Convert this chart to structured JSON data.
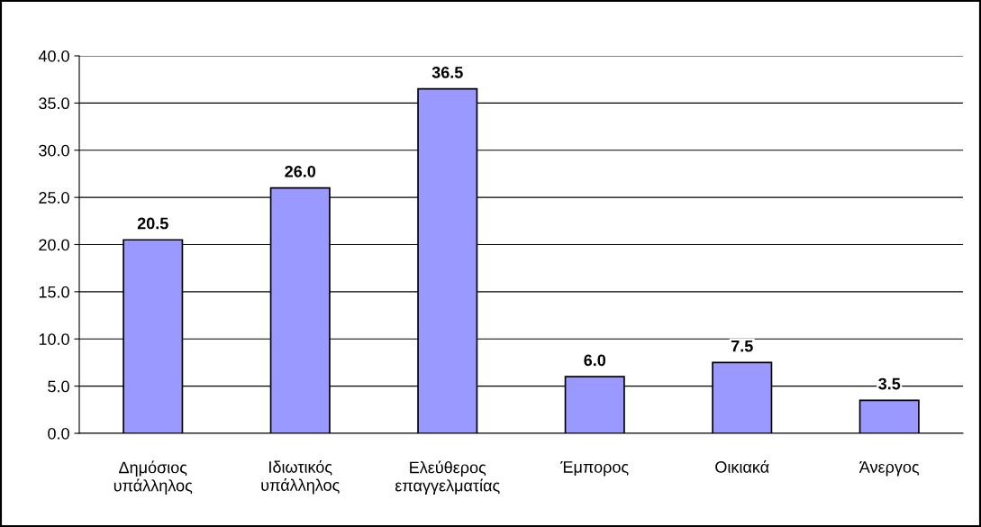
{
  "chart_data": {
    "type": "bar",
    "categories": [
      "Δημόσιος\nυπάλληλος",
      "Ιδιωτικός\nυπάλληλος",
      "Ελεύθερος\nεπαγγελματίας",
      "Έμπορος",
      "Οικιακά",
      "Άνεργος"
    ],
    "values": [
      20.5,
      26.0,
      36.5,
      6.0,
      7.5,
      3.5
    ],
    "value_labels": [
      "20.5",
      "26.0",
      "36.5",
      "6.0",
      "7.5",
      "3.5"
    ],
    "color": "#9999ff",
    "ylim": [
      0,
      40
    ],
    "yticks": [
      {
        "value": 0,
        "label": "0.0"
      },
      {
        "value": 5,
        "label": "5.0"
      },
      {
        "value": 10,
        "label": "10.0"
      },
      {
        "value": 15,
        "label": "15.0"
      },
      {
        "value": 20,
        "label": "20.0"
      },
      {
        "value": 25,
        "label": "25.0"
      },
      {
        "value": 30,
        "label": "30.0"
      },
      {
        "value": 35,
        "label": "35.0"
      },
      {
        "value": 40,
        "label": "40.0"
      }
    ],
    "grid": "y",
    "legend": false
  }
}
